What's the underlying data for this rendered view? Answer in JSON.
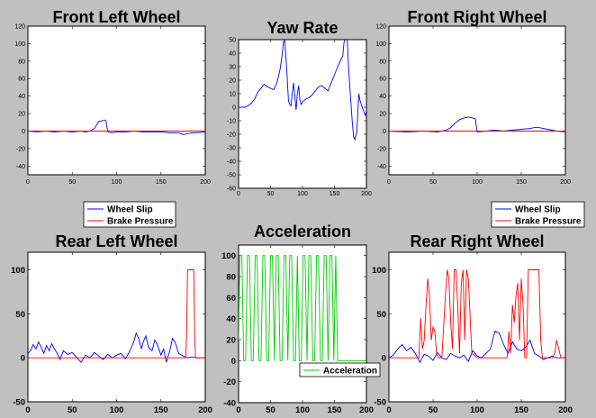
{
  "figure": {
    "background": "#c0c0c0"
  },
  "chart_data": [
    {
      "id": "fl",
      "type": "line",
      "title": "Front Left Wheel",
      "xlim": [
        0,
        200
      ],
      "ylim": [
        -50,
        120
      ],
      "xticks": [
        0,
        50,
        100,
        150,
        200
      ],
      "yticks": [
        -40,
        -20,
        0,
        20,
        40,
        60,
        80,
        100,
        120
      ],
      "series": [
        {
          "name": "Wheel Slip",
          "color": "#0000ff",
          "x": [
            0,
            10,
            20,
            30,
            40,
            50,
            60,
            65,
            70,
            75,
            80,
            85,
            88,
            90,
            95,
            100,
            110,
            120,
            130,
            140,
            150,
            160,
            170,
            175,
            180,
            185,
            190,
            200
          ],
          "y": [
            0,
            -1,
            0,
            -1,
            0,
            -1,
            0,
            -1,
            0,
            3,
            11,
            12,
            12,
            -1,
            -2,
            -1,
            -1,
            0,
            -1,
            -1,
            -1,
            -2,
            -2,
            -4,
            -3,
            -2,
            -2,
            -1
          ]
        },
        {
          "name": "Brake Pressure",
          "color": "#ff0000",
          "x": [
            0,
            200
          ],
          "y": [
            0,
            0
          ]
        }
      ],
      "legend": {
        "position": "below",
        "entries": [
          "Wheel Slip",
          "Brake Pressure"
        ]
      }
    },
    {
      "id": "yaw",
      "type": "line",
      "title": "Yaw Rate",
      "xlim": [
        0,
        200
      ],
      "ylim": [
        -60,
        50
      ],
      "xticks": [
        0,
        50,
        100,
        150,
        200
      ],
      "yticks": [
        -60,
        -50,
        -40,
        -30,
        -20,
        -10,
        0,
        10,
        20,
        30,
        40,
        50
      ],
      "series": [
        {
          "name": "",
          "color": "#0000ff",
          "x": [
            0,
            10,
            15,
            20,
            25,
            30,
            35,
            40,
            45,
            50,
            55,
            60,
            65,
            68,
            70,
            72,
            74,
            76,
            78,
            80,
            82,
            84,
            86,
            88,
            90,
            92,
            94,
            96,
            98,
            100,
            105,
            110,
            115,
            120,
            125,
            130,
            135,
            140,
            145,
            150,
            155,
            160,
            163,
            165,
            168,
            170,
            172,
            175,
            178,
            180,
            182,
            185,
            188,
            190,
            192,
            195,
            198,
            200
          ],
          "y": [
            0,
            0,
            1,
            3,
            6,
            11,
            14,
            17,
            15,
            14,
            13,
            18,
            28,
            38,
            48,
            50,
            38,
            22,
            5,
            2,
            1,
            10,
            18,
            8,
            -2,
            10,
            16,
            5,
            2,
            4,
            6,
            7,
            9,
            12,
            15,
            16,
            14,
            12,
            18,
            24,
            30,
            35,
            38,
            48,
            52,
            50,
            30,
            8,
            -12,
            -22,
            -24,
            -18,
            10,
            5,
            2,
            -2,
            -6,
            -3
          ]
        }
      ]
    },
    {
      "id": "fr",
      "type": "line",
      "title": "Front Right Wheel",
      "xlim": [
        0,
        200
      ],
      "ylim": [
        -50,
        120
      ],
      "xticks": [
        0,
        50,
        100,
        150,
        200
      ],
      "yticks": [
        -40,
        -20,
        0,
        20,
        40,
        60,
        80,
        100,
        120
      ],
      "series": [
        {
          "name": "Wheel Slip",
          "color": "#0000ff",
          "x": [
            0,
            20,
            40,
            55,
            60,
            65,
            70,
            75,
            80,
            85,
            90,
            95,
            98,
            100,
            110,
            120,
            130,
            140,
            150,
            160,
            165,
            170,
            175,
            180,
            190,
            200
          ],
          "y": [
            0,
            -1,
            0,
            -1,
            0,
            1,
            4,
            9,
            13,
            15,
            16,
            15,
            14,
            -1,
            0,
            1,
            0,
            1,
            2,
            3,
            4,
            4,
            3,
            2,
            0,
            -1
          ]
        },
        {
          "name": "Brake Pressure",
          "color": "#ff0000",
          "x": [
            0,
            200
          ],
          "y": [
            0,
            0
          ]
        }
      ],
      "legend": {
        "position": "below",
        "entries": [
          "Wheel Slip",
          "Brake Pressure"
        ]
      }
    },
    {
      "id": "rl",
      "type": "line",
      "title": "Rear Left Wheel",
      "xlim": [
        0,
        200
      ],
      "ylim": [
        -50,
        120
      ],
      "xticks": [
        0,
        50,
        100,
        150,
        200
      ],
      "yticks": [
        -50,
        0,
        50,
        100
      ],
      "series": [
        {
          "name": "",
          "color": "#0000ff",
          "x": [
            0,
            3,
            6,
            9,
            12,
            15,
            18,
            21,
            24,
            27,
            30,
            33,
            36,
            40,
            45,
            50,
            55,
            60,
            65,
            70,
            75,
            80,
            85,
            90,
            95,
            100,
            105,
            110,
            115,
            118,
            120,
            122,
            125,
            128,
            130,
            133,
            136,
            140,
            143,
            146,
            150,
            153,
            156,
            160,
            163,
            166,
            170,
            175,
            180,
            185,
            190,
            195,
            200
          ],
          "y": [
            5,
            8,
            15,
            10,
            18,
            12,
            5,
            14,
            8,
            16,
            10,
            5,
            -2,
            8,
            4,
            6,
            0,
            -5,
            3,
            0,
            6,
            2,
            -2,
            4,
            0,
            3,
            5,
            -1,
            8,
            15,
            20,
            28,
            22,
            10,
            18,
            25,
            12,
            8,
            20,
            15,
            3,
            10,
            -5,
            8,
            22,
            18,
            5,
            2,
            0,
            1,
            0,
            0,
            0
          ]
        },
        {
          "name": "",
          "color": "#ff0000",
          "x": [
            0,
            178,
            179,
            180,
            187,
            188,
            189,
            200
          ],
          "y": [
            0,
            0,
            30,
            100,
            100,
            30,
            0,
            0
          ]
        }
      ]
    },
    {
      "id": "acc",
      "type": "line",
      "title": "Acceleration",
      "xlim": [
        0,
        200
      ],
      "ylim": [
        -40,
        110
      ],
      "xticks": [
        0,
        50,
        100,
        150,
        200
      ],
      "yticks": [
        -40,
        -20,
        0,
        20,
        40,
        60,
        80,
        100
      ],
      "series": [
        {
          "name": "Acceleration",
          "color": "#00cc00",
          "x": [
            0,
            2,
            5,
            8,
            11,
            14,
            17,
            20,
            23,
            26,
            29,
            32,
            35,
            38,
            41,
            44,
            47,
            50,
            53,
            56,
            59,
            62,
            65,
            68,
            71,
            74,
            77,
            80,
            83,
            86,
            89,
            92,
            95,
            98,
            101,
            104,
            107,
            110,
            113,
            116,
            119,
            122,
            125,
            128,
            131,
            134,
            137,
            140,
            143,
            146,
            149,
            152,
            155,
            200
          ],
          "y": [
            20,
            100,
            100,
            0,
            0,
            100,
            100,
            0,
            0,
            100,
            100,
            0,
            0,
            100,
            100,
            0,
            0,
            100,
            100,
            0,
            100,
            100,
            0,
            0,
            100,
            100,
            0,
            100,
            100,
            0,
            0,
            100,
            0,
            0,
            100,
            100,
            0,
            100,
            100,
            0,
            0,
            100,
            100,
            0,
            0,
            100,
            100,
            0,
            100,
            100,
            0,
            100,
            0,
            0
          ]
        }
      ],
      "legend": {
        "position": "bottom-right",
        "entries": [
          "Acceleration"
        ]
      }
    },
    {
      "id": "rr",
      "type": "line",
      "title": "Rear Right Wheel",
      "xlim": [
        0,
        200
      ],
      "ylim": [
        -50,
        120
      ],
      "xticks": [
        0,
        50,
        100,
        150,
        200
      ],
      "yticks": [
        -50,
        0,
        50,
        100
      ],
      "series": [
        {
          "name": "",
          "color": "#0000ff",
          "x": [
            0,
            5,
            10,
            15,
            20,
            25,
            30,
            35,
            40,
            45,
            50,
            55,
            60,
            65,
            70,
            75,
            80,
            85,
            90,
            95,
            100,
            105,
            110,
            115,
            120,
            125,
            130,
            135,
            140,
            145,
            150,
            155,
            160,
            165,
            170,
            175,
            180,
            185,
            190,
            195,
            200
          ],
          "y": [
            0,
            3,
            10,
            15,
            8,
            12,
            5,
            -5,
            4,
            2,
            -3,
            6,
            0,
            -2,
            5,
            2,
            0,
            3,
            -4,
            8,
            2,
            0,
            5,
            10,
            30,
            28,
            15,
            5,
            18,
            10,
            8,
            12,
            20,
            5,
            2,
            -2,
            0,
            2,
            0,
            0,
            0
          ]
        },
        {
          "name": "",
          "color": "#ff0000",
          "x": [
            0,
            34,
            36,
            38,
            40,
            42,
            44,
            46,
            48,
            50,
            52,
            54,
            56,
            60,
            64,
            66,
            68,
            70,
            72,
            74,
            76,
            78,
            80,
            82,
            84,
            86,
            88,
            90,
            94,
            100,
            110,
            120,
            130,
            134,
            136,
            138,
            140,
            142,
            144,
            146,
            148,
            150,
            152,
            154,
            156,
            158,
            160,
            165,
            170,
            172,
            174,
            180,
            185,
            188,
            190,
            195,
            200
          ],
          "y": [
            0,
            0,
            45,
            10,
            20,
            60,
            90,
            70,
            20,
            35,
            30,
            5,
            0,
            0,
            70,
            100,
            90,
            40,
            10,
            100,
            100,
            60,
            5,
            85,
            100,
            20,
            100,
            90,
            5,
            0,
            0,
            0,
            0,
            0,
            30,
            5,
            60,
            40,
            70,
            85,
            20,
            90,
            60,
            0,
            0,
            100,
            100,
            100,
            100,
            20,
            0,
            0,
            0,
            5,
            20,
            0,
            0
          ]
        }
      ]
    }
  ]
}
